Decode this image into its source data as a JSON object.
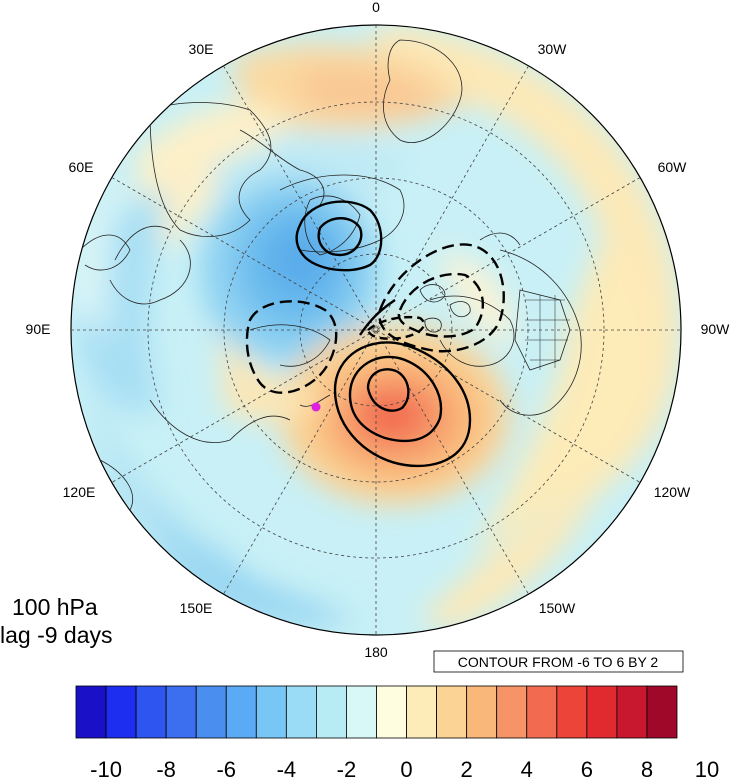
{
  "panel": {
    "level": "100 hPa",
    "lag": "lag -9 days"
  },
  "contour_info": "CONTOUR FROM -6 TO 6 BY 2",
  "longitude_labels": [
    "0",
    "30W",
    "60W",
    "90W",
    "120W",
    "150W",
    "180",
    "150E",
    "120E",
    "90E",
    "60E",
    "30E"
  ],
  "colorbar": {
    "tick_labels": [
      "-10",
      "-8",
      "-6",
      "-4",
      "-2",
      "0",
      "2",
      "4",
      "6",
      "8",
      "10"
    ],
    "colors": [
      "#1a10c8",
      "#1e2ef0",
      "#2f55f0",
      "#3c6ff0",
      "#4a8ff0",
      "#5aaaf5",
      "#78c6f5",
      "#9adcf5",
      "#b8ecf5",
      "#d8f8f8",
      "#fffde0",
      "#fdebb8",
      "#fbd394",
      "#f9b77a",
      "#f69468",
      "#f26b50",
      "#ec4438",
      "#e02a30",
      "#c81830",
      "#a0082a"
    ]
  },
  "marker": {
    "color": "#e020e0"
  }
}
